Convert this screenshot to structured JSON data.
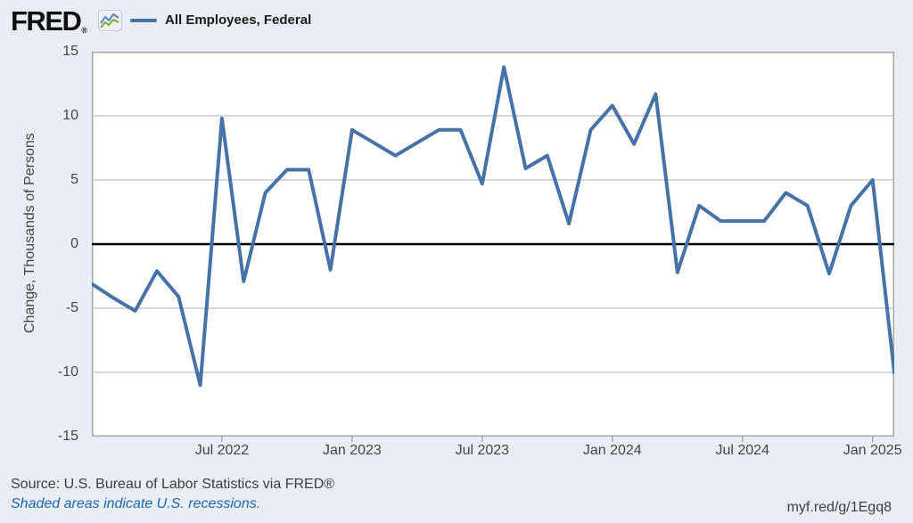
{
  "header": {
    "logo_text": "FRED",
    "registered_mark": "®"
  },
  "chart_data": {
    "type": "line",
    "title": "",
    "legend": [
      "All Employees, Federal"
    ],
    "xlabel": "",
    "ylabel": "Change, Thousands of Persons",
    "ylim": [
      -15,
      15
    ],
    "y_ticks": [
      15,
      10,
      5,
      0,
      -5,
      -10,
      -15
    ],
    "grid": true,
    "line_color": "#4572a7",
    "zero_line_color": "#000000",
    "grid_color": "#cccccc",
    "border_color": "#a6a6a6",
    "x": [
      "Jan 2022",
      "Feb 2022",
      "Mar 2022",
      "Apr 2022",
      "May 2022",
      "Jun 2022",
      "Jul 2022",
      "Aug 2022",
      "Sep 2022",
      "Oct 2022",
      "Nov 2022",
      "Dec 2022",
      "Jan 2023",
      "Feb 2023",
      "Mar 2023",
      "Apr 2023",
      "May 2023",
      "Jun 2023",
      "Jul 2023",
      "Aug 2023",
      "Sep 2023",
      "Oct 2023",
      "Nov 2023",
      "Dec 2023",
      "Jan 2024",
      "Feb 2024",
      "Mar 2024",
      "Apr 2024",
      "May 2024",
      "Jun 2024",
      "Jul 2024",
      "Aug 2024",
      "Sep 2024",
      "Oct 2024",
      "Nov 2024",
      "Dec 2024",
      "Jan 2025",
      "Feb 2025"
    ],
    "values": [
      -3.1,
      -4.2,
      -5.2,
      -2.1,
      -4.1,
      -11.0,
      9.8,
      -2.9,
      4.0,
      5.8,
      5.8,
      -2.0,
      8.9,
      7.9,
      6.9,
      7.9,
      8.9,
      8.9,
      4.7,
      13.8,
      5.9,
      6.9,
      1.6,
      8.9,
      10.8,
      7.8,
      11.7,
      -2.2,
      3.0,
      1.8,
      1.8,
      1.8,
      4.0,
      3.0,
      -2.3,
      3.0,
      5.0,
      -10.0
    ],
    "x_ticks": [
      {
        "label": "Jul 2022",
        "index": 6
      },
      {
        "label": "Jan 2023",
        "index": 12
      },
      {
        "label": "Jul 2023",
        "index": 18
      },
      {
        "label": "Jan 2024",
        "index": 24
      },
      {
        "label": "Jul 2024",
        "index": 30
      },
      {
        "label": "Jan 2025",
        "index": 36
      }
    ]
  },
  "footer": {
    "source": "Source: U.S. Bureau of Labor Statistics via FRED®",
    "recession_note": "Shaded areas indicate U.S. recessions.",
    "short_url": "myf.red/g/1Egq8"
  }
}
